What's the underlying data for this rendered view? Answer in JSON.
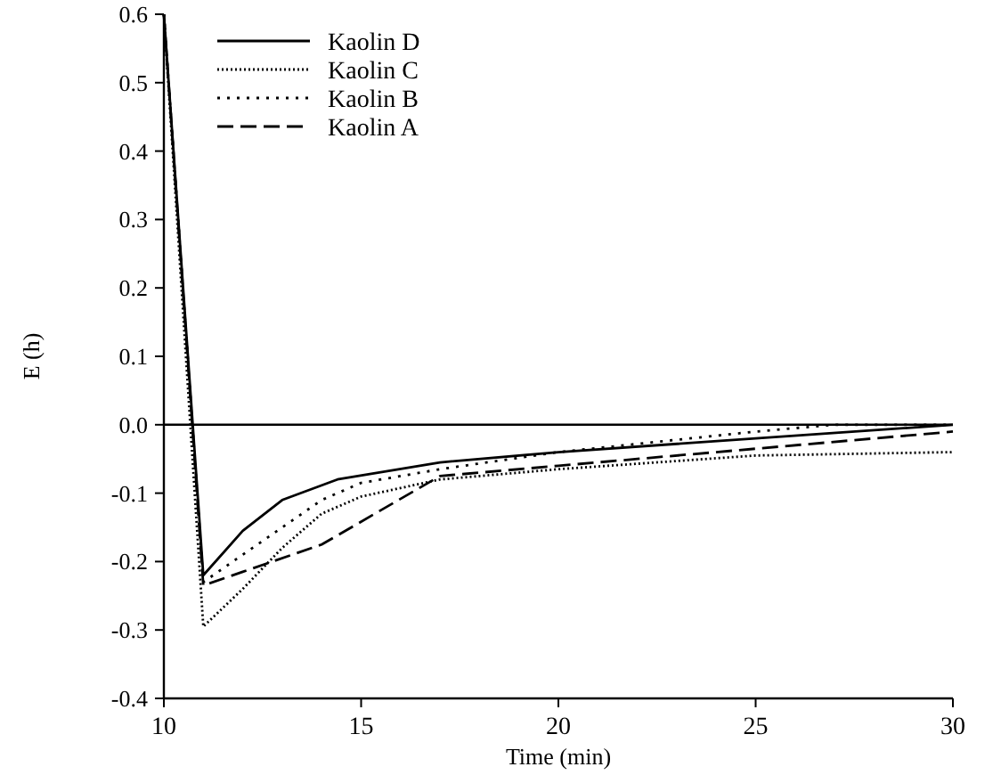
{
  "chart_data": {
    "type": "line",
    "xlabel": "Time (min)",
    "ylabel": "E (h)",
    "xlim": [
      10,
      30
    ],
    "xticks": [
      10,
      15,
      20,
      25,
      30
    ],
    "ylim": [
      -0.4,
      0.6
    ],
    "yticks": [
      {
        "value": -0.4,
        "label": "-0.4"
      },
      {
        "value": -0.3,
        "label": "-0.3"
      },
      {
        "value": -0.2,
        "label": "-0.2"
      },
      {
        "value": -0.1,
        "label": "-0.1"
      },
      {
        "value": 0,
        "label": "0.0"
      },
      {
        "value": 0.1,
        "label": "0.1"
      },
      {
        "value": 0.2,
        "label": "0.2"
      },
      {
        "value": 0.3,
        "label": "0.3"
      },
      {
        "value": 0.4,
        "label": "0.4"
      },
      {
        "value": 0.5,
        "label": "0.5"
      },
      {
        "value": 0.6,
        "label": "0.6"
      }
    ],
    "legend": "top left",
    "grid": false,
    "ref_lines": [
      {
        "axis": "y",
        "value": 0,
        "color": "#000000",
        "line_style": "solid"
      }
    ],
    "series": [
      {
        "name": "Kaolin D",
        "color": "#000000",
        "line_style": "solid",
        "x": [
          10,
          11,
          12,
          13,
          14.4,
          17,
          20,
          25,
          30
        ],
        "values": [
          0.6,
          -0.22,
          -0.155,
          -0.11,
          -0.08,
          -0.055,
          -0.04,
          -0.02,
          0
        ]
      },
      {
        "name": "Kaolin C",
        "color": "#000000",
        "line_style": "dotted",
        "x": [
          10,
          11,
          12,
          13,
          14,
          15,
          17,
          20,
          25,
          30
        ],
        "values": [
          0.6,
          -0.295,
          -0.24,
          -0.18,
          -0.13,
          -0.105,
          -0.08,
          -0.065,
          -0.045,
          -0.04
        ]
      },
      {
        "name": "Kaolin B",
        "color": "#000000",
        "line_style": "dotted",
        "x": [
          10,
          11,
          12,
          13,
          14,
          15,
          17,
          20,
          25,
          27,
          30
        ],
        "values": [
          0.6,
          -0.23,
          -0.19,
          -0.15,
          -0.11,
          -0.085,
          -0.065,
          -0.04,
          -0.01,
          0,
          0
        ]
      },
      {
        "name": "Kaolin A",
        "color": "#000000",
        "line_style": "dashed",
        "x": [
          10,
          11,
          12,
          14,
          17,
          20,
          25,
          30
        ],
        "values": [
          0.6,
          -0.235,
          -0.215,
          -0.175,
          -0.075,
          -0.06,
          -0.035,
          -0.01
        ]
      }
    ]
  }
}
